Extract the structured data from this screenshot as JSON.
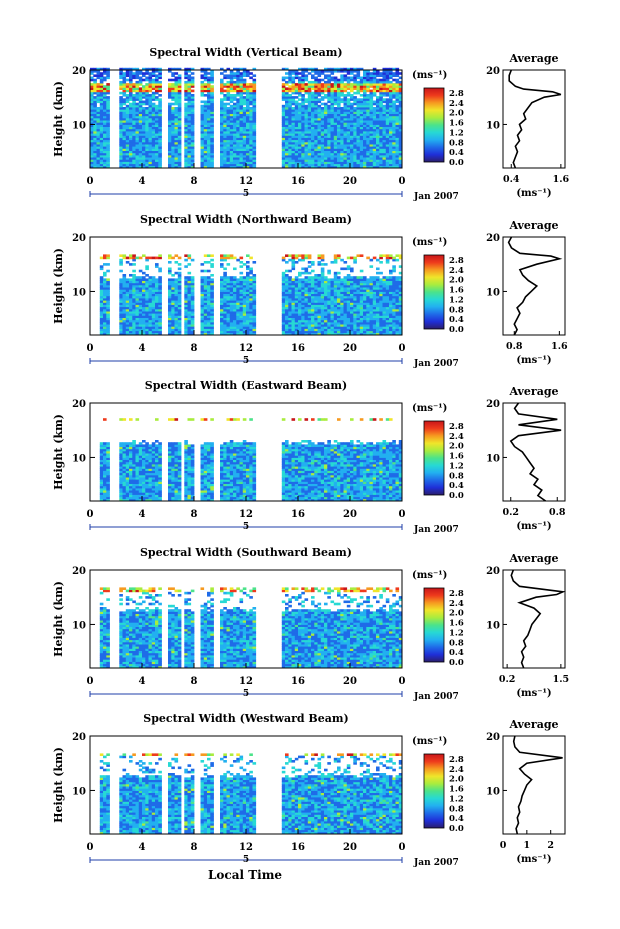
{
  "colorbar": {
    "unit": "(ms⁻¹)",
    "ticks": [
      "2.8",
      "2.4",
      "2.0",
      "1.6",
      "1.2",
      "0.8",
      "0.4",
      "0.0"
    ],
    "stops": [
      "#2b1d6b",
      "#1f2fd8",
      "#1f6be8",
      "#22b0f0",
      "#27d9d4",
      "#4ce38a",
      "#a9ec3e",
      "#f0e52a",
      "#f69a20",
      "#ee3a1c",
      "#c8161a"
    ]
  },
  "shared": {
    "x_ticks": [
      "0",
      "4",
      "8",
      "12",
      "16",
      "20",
      "0"
    ],
    "date_label": "5",
    "month_label": "Jan 2007",
    "xlabel": "Local Time",
    "ylabel": "Height (km)",
    "y_ticks": [
      "20",
      "10"
    ],
    "avg_title": "Average",
    "avg_xlabel": "(ms⁻¹)"
  },
  "chart_data": [
    {
      "type": "heatmap",
      "title": "Spectral Width (Vertical Beam)",
      "xlim": [
        0,
        24
      ],
      "ylim": [
        2,
        20
      ],
      "avg": {
        "type": "line",
        "xticks": [
          "0.4",
          "1.6"
        ],
        "xlim": [
          0.2,
          1.7
        ],
        "heights": [
          2,
          3,
          4,
          5,
          6,
          7,
          8,
          9,
          10,
          11,
          12,
          13,
          14,
          15,
          15.5,
          16,
          16.5,
          17,
          18,
          19,
          20
        ],
        "values": [
          0.5,
          0.45,
          0.5,
          0.55,
          0.5,
          0.6,
          0.55,
          0.65,
          0.6,
          0.75,
          0.7,
          0.8,
          0.9,
          1.2,
          1.6,
          1.4,
          0.7,
          0.5,
          0.35,
          0.35,
          0.4
        ]
      }
    },
    {
      "type": "heatmap",
      "title": "Spectral Width (Northward Beam)",
      "xlim": [
        0,
        24
      ],
      "ylim": [
        2,
        20
      ],
      "avg": {
        "type": "line",
        "xticks": [
          "0.8",
          "1.6"
        ],
        "xlim": [
          0.6,
          1.7
        ],
        "heights": [
          2,
          3,
          4,
          5,
          6,
          7,
          8,
          9,
          10,
          11,
          12,
          13,
          14,
          15,
          16,
          16.5,
          17,
          18,
          19,
          20
        ],
        "values": [
          0.8,
          0.85,
          0.8,
          0.85,
          0.9,
          0.85,
          0.95,
          1.0,
          1.1,
          1.2,
          1.05,
          0.95,
          0.9,
          1.2,
          1.6,
          1.45,
          0.9,
          0.75,
          0.7,
          0.75
        ]
      }
    },
    {
      "type": "heatmap",
      "title": "Spectral Width (Eastward Beam)",
      "xlim": [
        0,
        24
      ],
      "ylim": [
        2,
        20
      ],
      "avg": {
        "type": "line",
        "xticks": [
          "0.2",
          "0.8"
        ],
        "xlim": [
          0.1,
          0.9
        ],
        "heights": [
          2,
          3,
          4,
          5,
          6,
          7,
          8,
          9,
          10,
          11,
          12,
          13,
          14,
          15,
          16,
          17,
          18,
          19,
          20
        ],
        "values": [
          0.65,
          0.55,
          0.6,
          0.5,
          0.55,
          0.45,
          0.5,
          0.45,
          0.4,
          0.35,
          0.25,
          0.2,
          0.3,
          0.85,
          0.3,
          0.8,
          0.3,
          0.25,
          0.3
        ]
      }
    },
    {
      "type": "heatmap",
      "title": "Spectral Width (Southward Beam)",
      "xlim": [
        0,
        24
      ],
      "ylim": [
        2,
        20
      ],
      "avg": {
        "type": "line",
        "xticks": [
          "0.2",
          "1.5"
        ],
        "xlim": [
          0.1,
          1.6
        ],
        "heights": [
          2,
          3,
          4,
          5,
          6,
          7,
          8,
          9,
          10,
          11,
          12,
          13,
          14,
          15,
          15.5,
          16,
          17,
          18,
          19,
          20
        ],
        "values": [
          0.6,
          0.55,
          0.6,
          0.55,
          0.65,
          0.6,
          0.7,
          0.75,
          0.8,
          0.9,
          1.0,
          0.85,
          0.5,
          0.9,
          1.4,
          1.55,
          0.5,
          0.35,
          0.3,
          0.35
        ]
      }
    },
    {
      "type": "heatmap",
      "title": "Spectral Width (Westward Beam)",
      "xlim": [
        0,
        24
      ],
      "ylim": [
        2,
        20
      ],
      "avg": {
        "type": "line",
        "xticks": [
          "0",
          "1",
          "2"
        ],
        "xlim": [
          0,
          2.6
        ],
        "heights": [
          2,
          3,
          4,
          5,
          6,
          7,
          8,
          9,
          10,
          11,
          12,
          13,
          14,
          15,
          16,
          17,
          18,
          19,
          20
        ],
        "values": [
          0.6,
          0.55,
          0.65,
          0.6,
          0.7,
          0.65,
          0.75,
          0.8,
          0.9,
          1.0,
          1.2,
          0.9,
          0.7,
          1.0,
          2.5,
          0.7,
          0.5,
          0.45,
          0.5
        ]
      }
    }
  ]
}
